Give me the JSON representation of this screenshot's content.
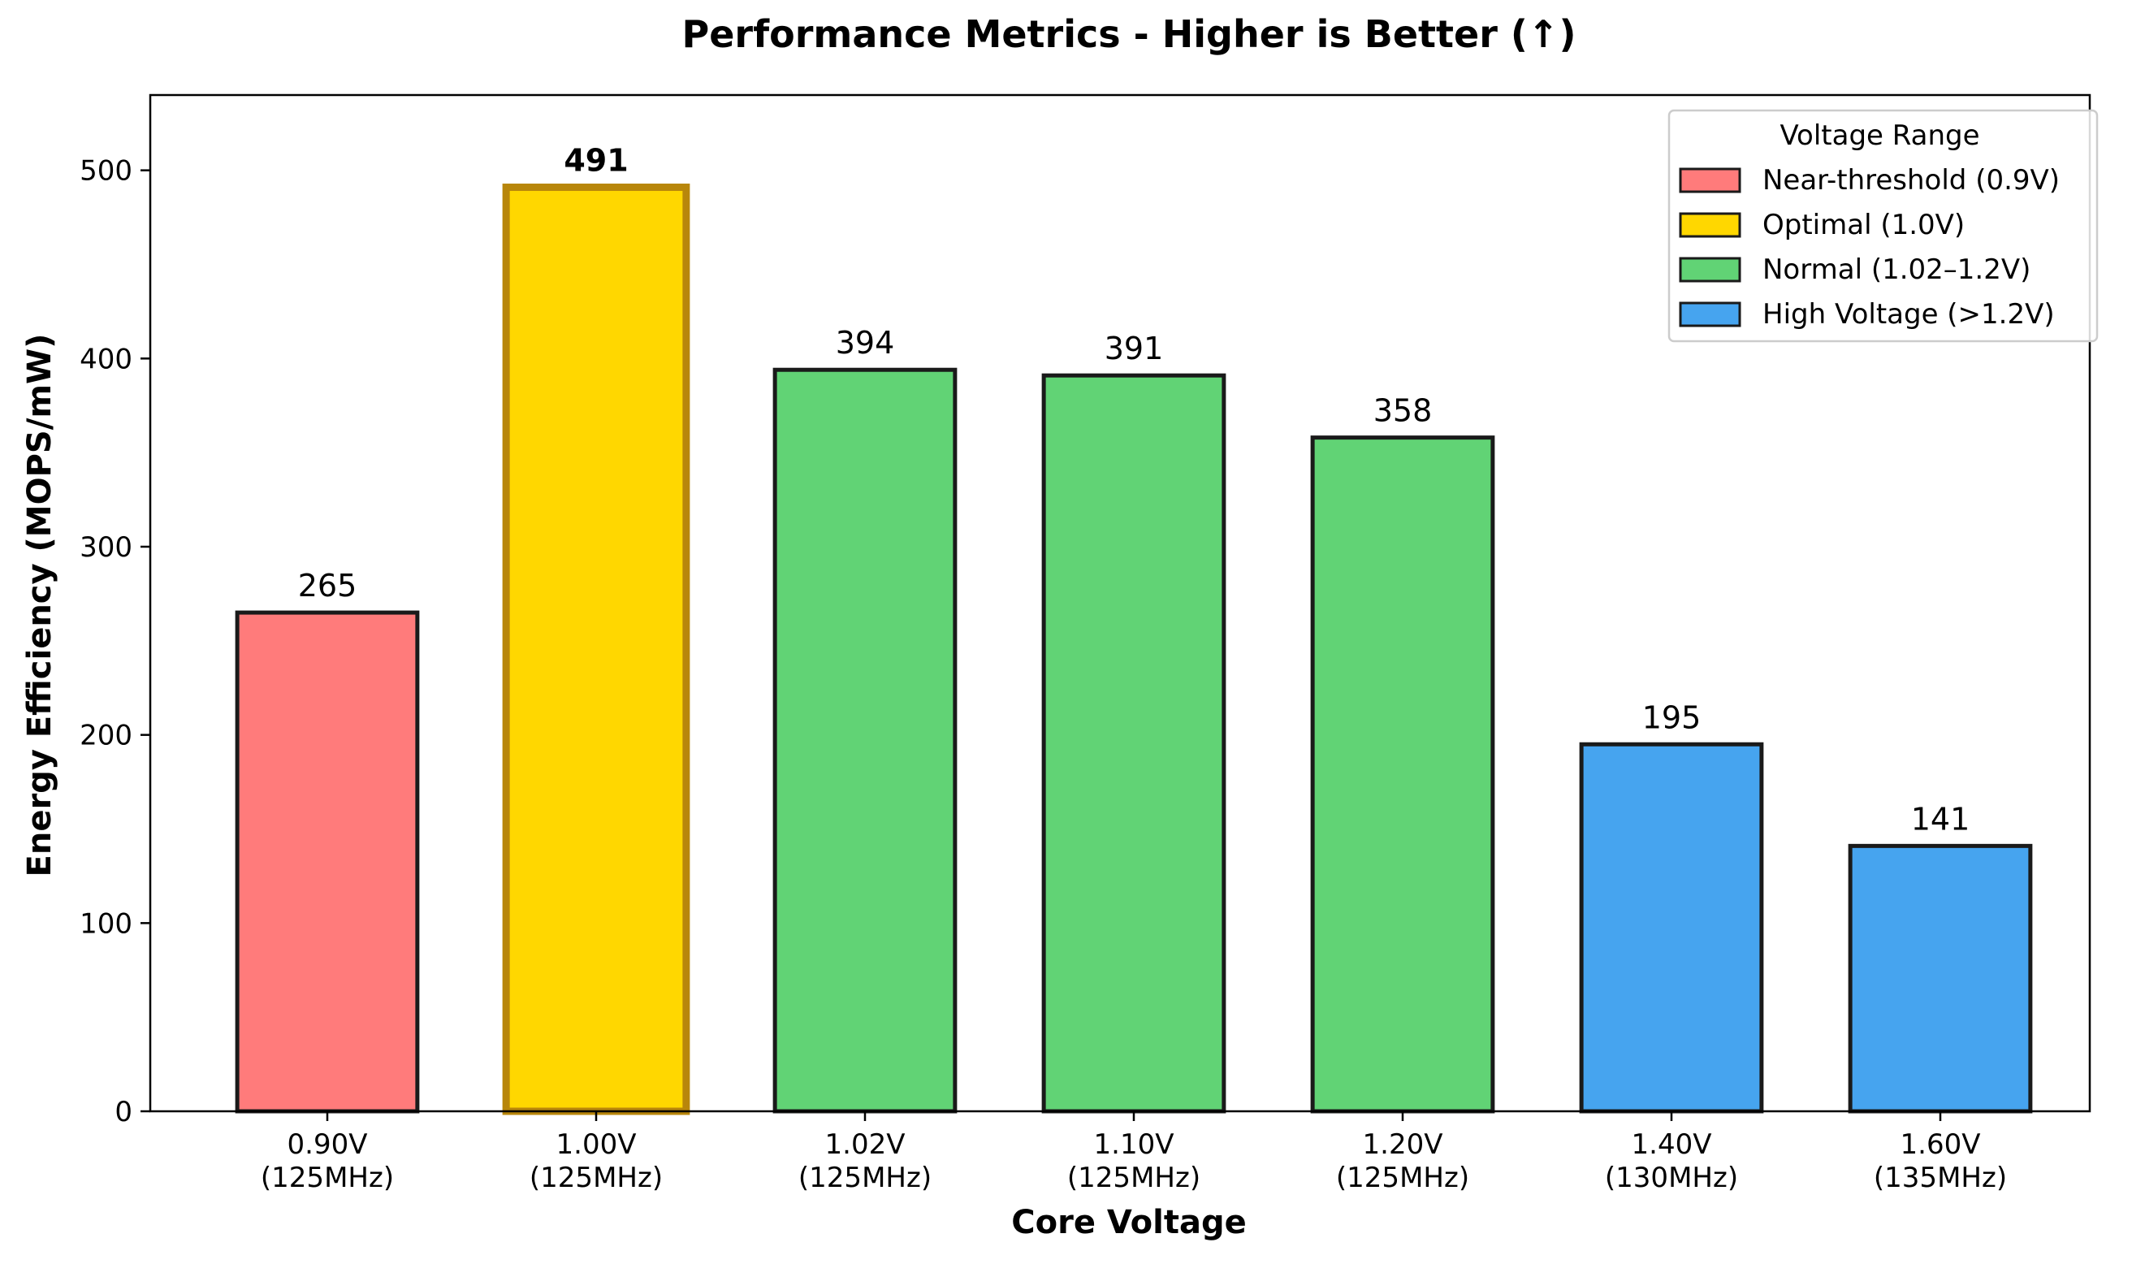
{
  "chart_data": {
    "type": "bar",
    "title": "Performance Metrics - Higher is Better (↑)",
    "xlabel": "Core Voltage",
    "ylabel": "Energy Efficiency (MOPS/mW)",
    "ylim": [
      0,
      540
    ],
    "yticks": [
      0,
      100,
      200,
      300,
      400,
      500
    ],
    "grid": false,
    "categories": [
      {
        "line1": "0.90V",
        "line2": "(125MHz)"
      },
      {
        "line1": "1.00V",
        "line2": "(125MHz)"
      },
      {
        "line1": "1.02V",
        "line2": "(125MHz)"
      },
      {
        "line1": "1.10V",
        "line2": "(125MHz)"
      },
      {
        "line1": "1.20V",
        "line2": "(125MHz)"
      },
      {
        "line1": "1.40V",
        "line2": "(130MHz)"
      },
      {
        "line1": "1.60V",
        "line2": "(135MHz)"
      }
    ],
    "values": [
      265,
      491,
      394,
      391,
      358,
      195,
      141
    ],
    "value_labels": [
      "265",
      "491",
      "394",
      "391",
      "358",
      "195",
      "141"
    ],
    "bar_groups": [
      0,
      1,
      2,
      2,
      2,
      3,
      3
    ],
    "highlighted_index": 1,
    "legend": {
      "title": "Voltage Range",
      "placement": "top-right",
      "entries": [
        {
          "label": "Near-threshold (0.9V)",
          "color": "#FF7B7B"
        },
        {
          "label": "Optimal (1.0V)",
          "color": "#FFD700"
        },
        {
          "label": "Normal (1.02–1.2V)",
          "color": "#61D375"
        },
        {
          "label": "High Voltage (>1.2V)",
          "color": "#46A4EF"
        }
      ]
    },
    "colors": {
      "edge": "#1a1a1a",
      "highlight_edge": "#B8860B"
    }
  }
}
